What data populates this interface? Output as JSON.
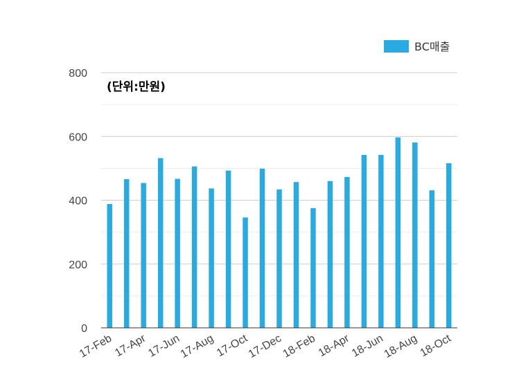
{
  "chart_data": {
    "type": "bar",
    "title": "",
    "unit_note": "(단위:만원)",
    "xlabel": "",
    "ylabel": "",
    "ylim": [
      0,
      800
    ],
    "yticks": [
      "0",
      "200",
      "400",
      "600",
      "800"
    ],
    "legend": {
      "position": "top-right"
    },
    "color": "#29abe2",
    "categories": [
      "17-Feb",
      "17-Mar",
      "17-Apr",
      "17-May",
      "17-Jun",
      "17-Jul",
      "17-Aug",
      "17-Sep",
      "17-Oct",
      "17-Nov",
      "17-Dec",
      "18-Jan",
      "18-Feb",
      "18-Mar",
      "18-Apr",
      "18-May",
      "18-Jun",
      "18-Jul",
      "18-Aug",
      "18-Sep",
      "18-Oct"
    ],
    "xtick_labels": [
      "17-Feb",
      "17-Apr",
      "17-Jun",
      "17-Aug",
      "17-Oct",
      "17-Dec",
      "18-Feb",
      "18-Apr",
      "18-Jun",
      "18-Aug",
      "18-Oct"
    ],
    "series": [
      {
        "name": "BC매출",
        "values": [
          388,
          466,
          454,
          532,
          467,
          506,
          437,
          493,
          346,
          499,
          434,
          457,
          375,
          460,
          473,
          542,
          542,
          597,
          581,
          431,
          516
        ]
      }
    ]
  }
}
